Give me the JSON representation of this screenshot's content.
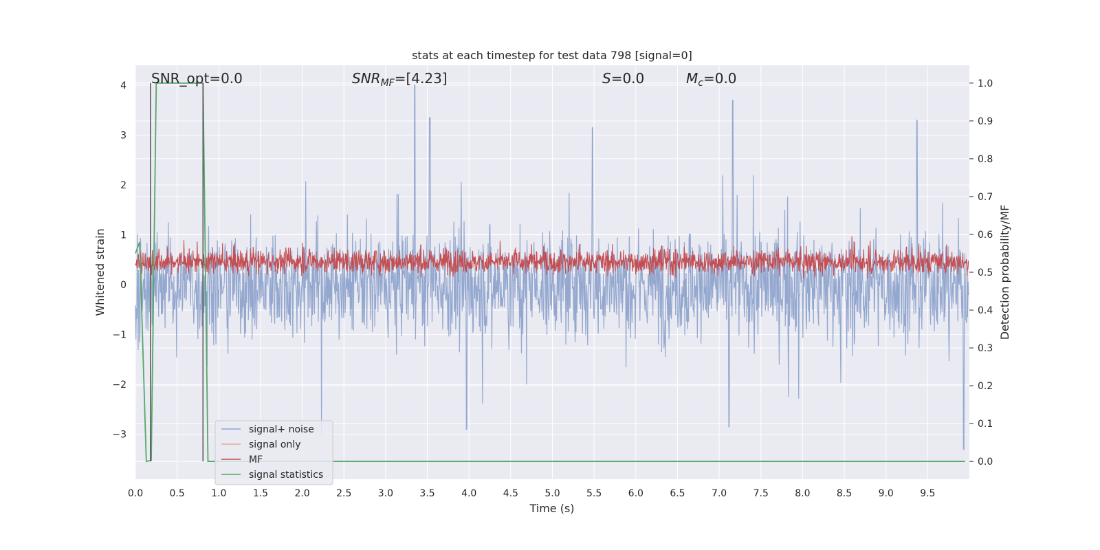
{
  "chart_data": {
    "type": "line",
    "title": "stats at each timestep for test data 798 [signal=0]",
    "xlabel": "Time (s)",
    "ylabel_left": "Whitened strain",
    "ylabel_right": "Detection probability/MF",
    "xlim": [
      0.0,
      10.0
    ],
    "ylim_left": [
      -3.9,
      4.4
    ],
    "ylim_right": [
      -0.047,
      1.047
    ],
    "x_ticks": [
      "0.0",
      "0.5",
      "1.0",
      "1.5",
      "2.0",
      "2.5",
      "3.0",
      "3.5",
      "4.0",
      "4.5",
      "5.0",
      "5.5",
      "6.0",
      "6.5",
      "7.0",
      "7.5",
      "8.0",
      "8.5",
      "9.0",
      "9.5"
    ],
    "y_left_ticks": [
      "4",
      "3",
      "2",
      "1",
      "0",
      "−1",
      "−2",
      "−3"
    ],
    "y_right_ticks": [
      "1.0",
      "0.9",
      "0.8",
      "0.7",
      "0.6",
      "0.5",
      "0.4",
      "0.3",
      "0.2",
      "0.1",
      "0.0"
    ],
    "grid": true,
    "legend_position": "lower-left",
    "annotations": {
      "snr_opt": "SNR_opt=0.0",
      "snr_mf_label": "SNR",
      "snr_mf_sub": "MF",
      "snr_mf_value": "=[4.23]",
      "s_label": "S",
      "s_value": "=0.0",
      "mc_label": "M",
      "mc_sub": "c",
      "mc_value": "=0.0"
    },
    "series": [
      {
        "name": "signal+ noise",
        "color": "#8fa4cc",
        "axis": "left",
        "description_values": "noise band roughly -2.2..2.4, peaks to 4.0 near t=3.35",
        "peaks": [
          [
            3.35,
            4.0
          ],
          [
            3.53,
            3.35
          ],
          [
            7.16,
            3.7
          ],
          [
            9.37,
            3.3
          ],
          [
            5.48,
            3.15
          ],
          [
            9.93,
            -3.3
          ],
          [
            3.97,
            -2.9
          ],
          [
            7.12,
            -2.85
          ]
        ]
      },
      {
        "name": "signal only",
        "color": "#e8a98c",
        "axis": "left",
        "values": []
      },
      {
        "name": "MF",
        "color": "#c44e52",
        "axis": "right",
        "description_values": "band roughly 0.47..0.59 (right axis)"
      },
      {
        "name": "signal statistics",
        "color": "#55a868",
        "axis": "right",
        "x": [
          0.0,
          0.05,
          0.13,
          0.19,
          0.25,
          0.81,
          0.87,
          9.95
        ],
        "y": [
          0.55,
          0.58,
          0.0,
          0.003,
          1.0,
          1.0,
          0.0,
          0.0
        ]
      }
    ],
    "vertical_markers": [
      0.18,
      0.81
    ],
    "marker_color": "#555555"
  }
}
